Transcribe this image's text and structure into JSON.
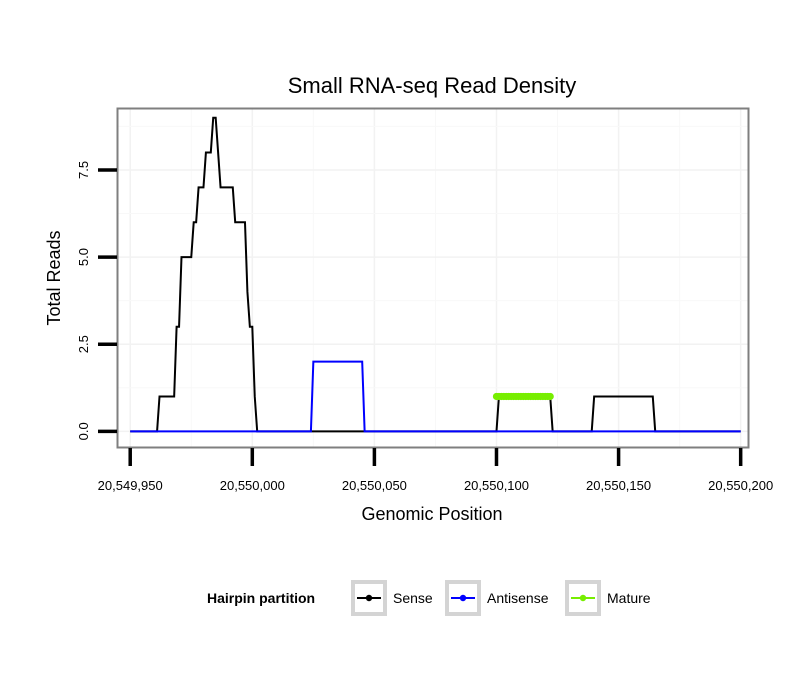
{
  "chart_data": {
    "type": "line",
    "title": "Small RNA-seq Read Density",
    "xlabel": "Genomic Position",
    "ylabel": "Total Reads",
    "xlim": [
      20549945,
      20550203
    ],
    "ylim": [
      -0.45,
      9.25
    ],
    "x_ticks": [
      20549950,
      20550000,
      20550050,
      20550100,
      20550150,
      20550200
    ],
    "x_tick_labels": [
      "20,549,950",
      "20,550,000",
      "20,550,050",
      "20,550,100",
      "20,550,150",
      "20,550,200"
    ],
    "y_ticks": [
      0,
      2.5,
      5,
      7.5
    ],
    "y_tick_labels": [
      "0.0",
      "2.5",
      "5.0",
      "7.5"
    ],
    "grid": true,
    "legend": {
      "title": "Hairpin partition",
      "position": "bottom",
      "entries": [
        "Sense",
        "Antisense",
        "Mature"
      ]
    },
    "series": [
      {
        "name": "Sense",
        "color": "#000000",
        "x": [
          20549950,
          20549961,
          20549962,
          20549968,
          20549969,
          20549970,
          20549971,
          20549975,
          20549976,
          20549977,
          20549978,
          20549980,
          20549981,
          20549983,
          20549984,
          20549985,
          20549986,
          20549987,
          20549989,
          20549990,
          20549991,
          20549992,
          20549993,
          20549994,
          20549995,
          20549997,
          20549998,
          20549999,
          20550000,
          20550001,
          20550002,
          20550003,
          20550004,
          20550005,
          20550075,
          20550100,
          20550101,
          20550122,
          20550123,
          20550139,
          20550140,
          20550164,
          20550165,
          20550200
        ],
        "y": [
          0,
          0,
          1,
          1,
          3,
          3,
          5,
          5,
          6,
          6,
          7,
          7,
          8,
          8,
          9,
          9,
          8,
          7,
          7,
          7,
          7,
          7,
          6,
          6,
          6,
          6,
          4,
          3,
          3,
          1,
          0,
          0,
          0,
          0,
          0,
          0,
          1,
          1,
          0,
          0,
          1,
          1,
          0,
          0
        ]
      },
      {
        "name": "Antisense",
        "color": "#0000ff",
        "x": [
          20549950,
          20550024,
          20550025,
          20550045,
          20550046,
          20550200
        ],
        "y": [
          0,
          0,
          2,
          2,
          0,
          0
        ]
      },
      {
        "name": "Mature",
        "color": "#77ee00",
        "x": [
          20550100,
          20550101,
          20550102,
          20550103,
          20550104,
          20550105,
          20550106,
          20550107,
          20550108,
          20550109,
          20550110,
          20550111,
          20550112,
          20550113,
          20550114,
          20550115,
          20550116,
          20550117,
          20550118,
          20550119,
          20550120,
          20550121,
          20550122
        ],
        "y": [
          1,
          1,
          1,
          1,
          1,
          1,
          1,
          1,
          1,
          1,
          1,
          1,
          1,
          1,
          1,
          1,
          1,
          1,
          1,
          1,
          1,
          1,
          1
        ]
      }
    ]
  }
}
